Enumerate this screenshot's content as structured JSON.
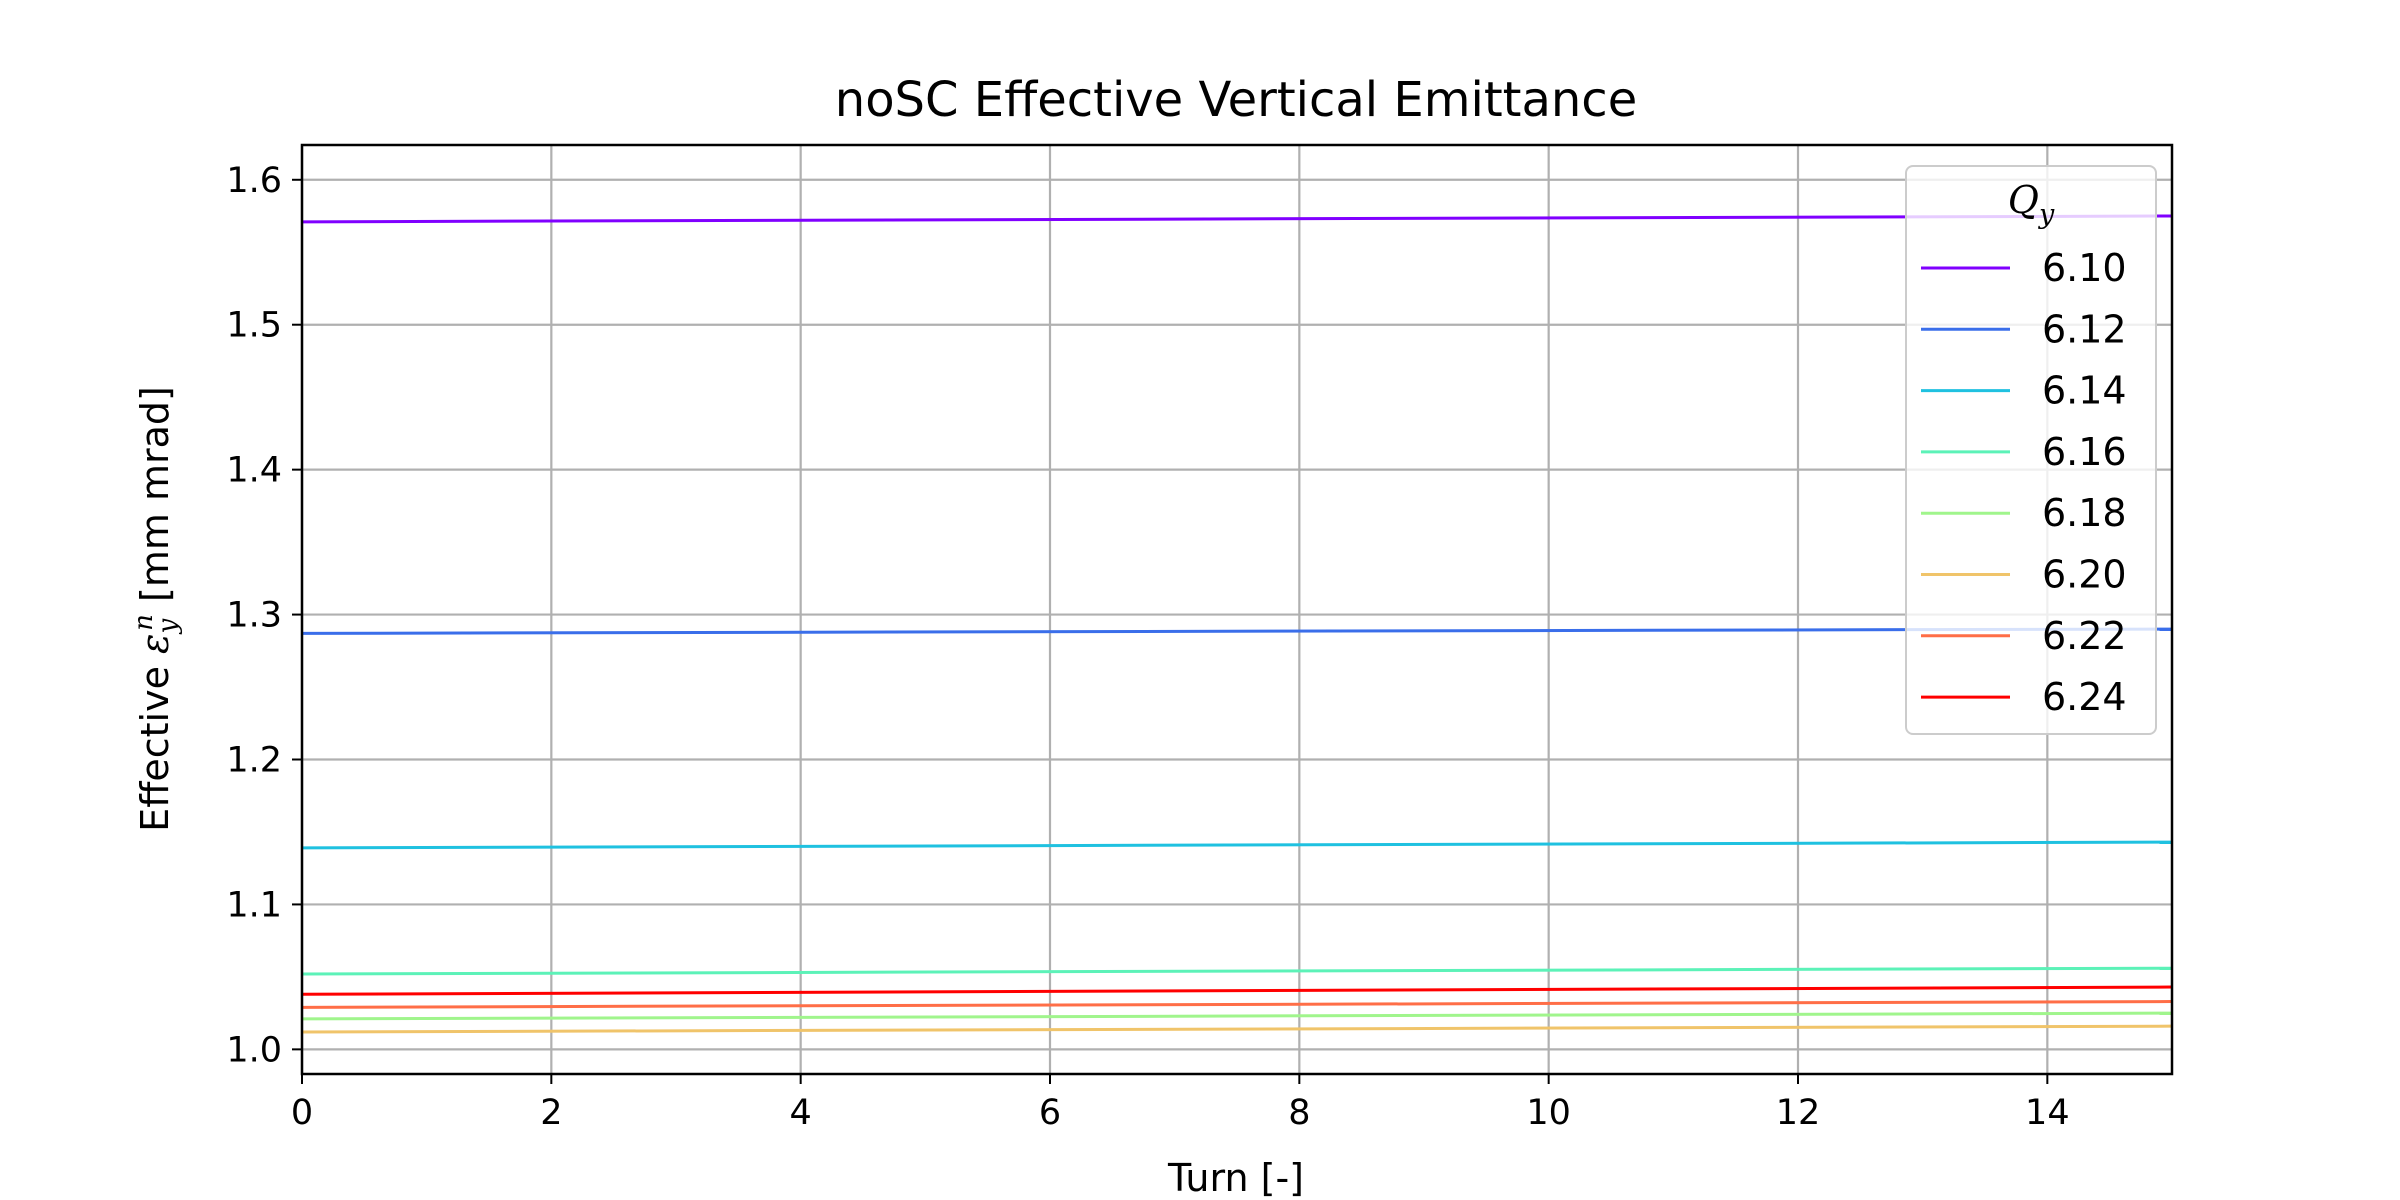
{
  "chart_data": {
    "type": "line",
    "title": "noSC Effective Vertical Emittance",
    "xlabel": "Turn [-]",
    "ylabel_prefix": "Effective ",
    "ylabel_symbol": "ε",
    "ylabel_subscript": "y",
    "ylabel_superscript": "n",
    "ylabel_suffix": " [mm mrad]",
    "xlim": [
      0,
      15
    ],
    "ylim": [
      0.983,
      1.624
    ],
    "xticks": [
      0,
      2,
      4,
      6,
      8,
      10,
      12,
      14
    ],
    "xtick_labels": [
      "0",
      "2",
      "4",
      "6",
      "8",
      "10",
      "12",
      "14"
    ],
    "yticks": [
      1.0,
      1.1,
      1.2,
      1.3,
      1.4,
      1.5,
      1.6
    ],
    "ytick_labels": [
      "1.0",
      "1.1",
      "1.2",
      "1.3",
      "1.4",
      "1.5",
      "1.6"
    ],
    "grid": true,
    "legend": {
      "title_symbol": "Q",
      "title_subscript": "y",
      "placement": "top-right"
    },
    "x": [
      0,
      15
    ],
    "series": [
      {
        "name": "6.10",
        "color": "#8000ff",
        "values": [
          1.571,
          1.575
        ]
      },
      {
        "name": "6.12",
        "color": "#3a6eea",
        "values": [
          1.287,
          1.29
        ]
      },
      {
        "name": "6.14",
        "color": "#1fc1e0",
        "values": [
          1.139,
          1.143
        ]
      },
      {
        "name": "6.16",
        "color": "#5cf2b8",
        "values": [
          1.052,
          1.056
        ]
      },
      {
        "name": "6.18",
        "color": "#a0f58c",
        "values": [
          1.021,
          1.025
        ]
      },
      {
        "name": "6.20",
        "color": "#f0c46a",
        "values": [
          1.012,
          1.016
        ]
      },
      {
        "name": "6.22",
        "color": "#ff6e47",
        "values": [
          1.029,
          1.033
        ]
      },
      {
        "name": "6.24",
        "color": "#ff0000",
        "values": [
          1.038,
          1.043
        ]
      }
    ]
  }
}
